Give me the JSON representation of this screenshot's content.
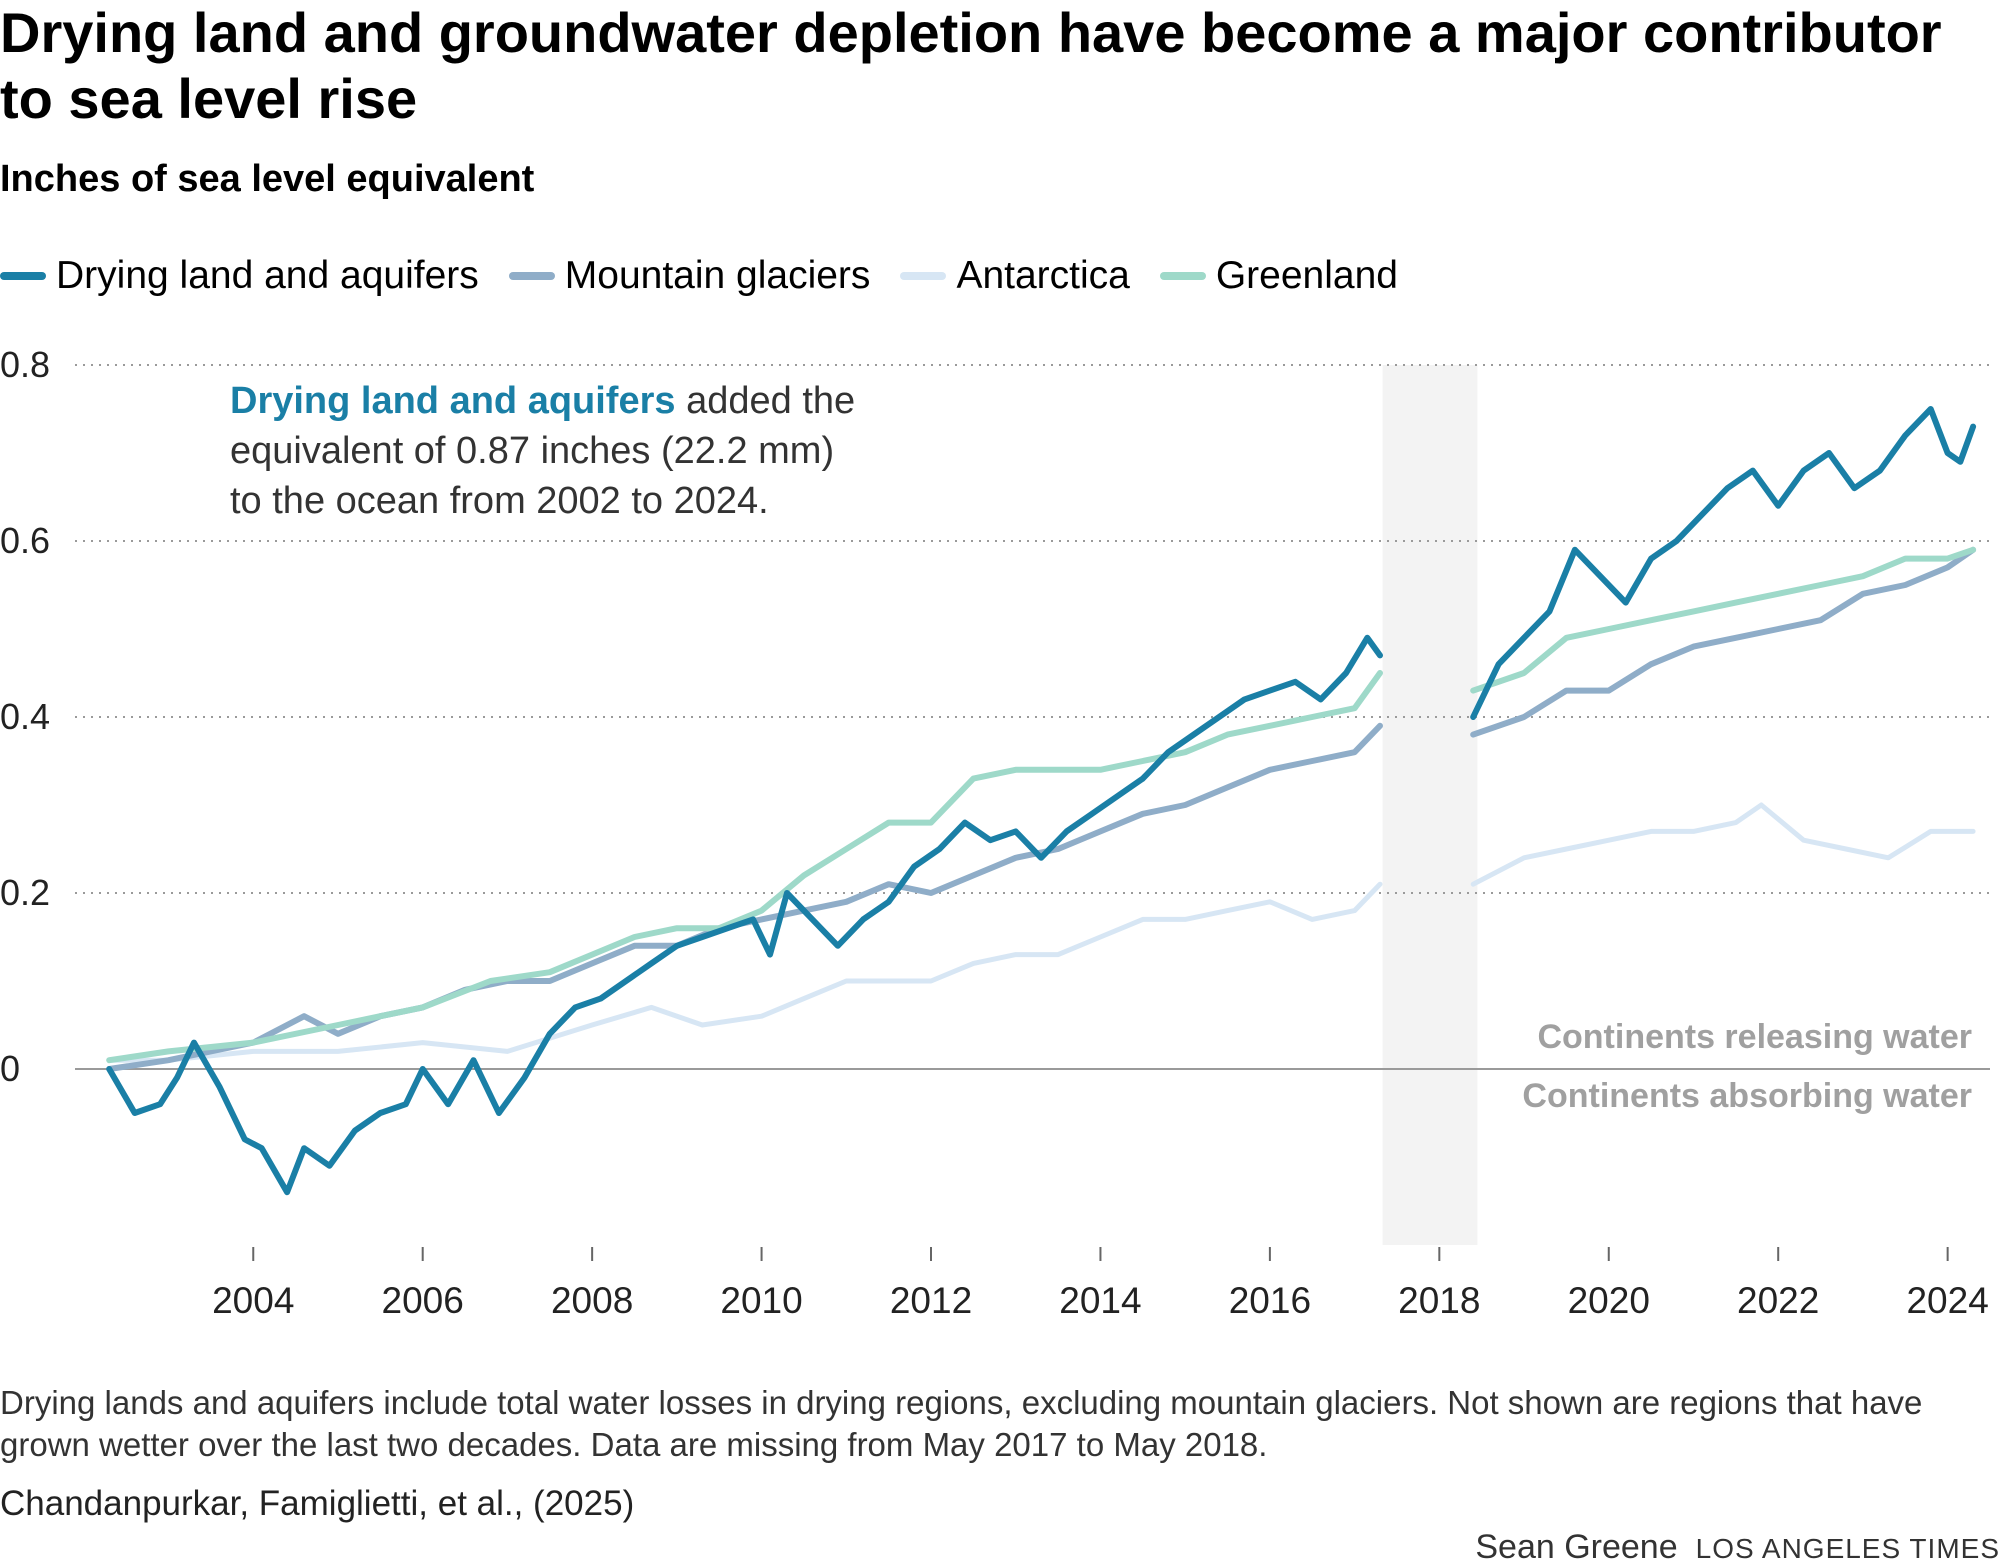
{
  "header": {
    "title": "Drying land and groundwater depletion have become a major contributor to sea level rise",
    "subtitle": "Inches of sea level equivalent"
  },
  "legend": [
    {
      "label": "Drying land and aquifers",
      "color": "#1a7fa6"
    },
    {
      "label": "Mountain glaciers",
      "color": "#8fadc8"
    },
    {
      "label": "Antarctica",
      "color": "#d7e6f4"
    },
    {
      "label": "Greenland",
      "color": "#9ed9c9"
    }
  ],
  "annotation": {
    "highlight": "Drying land and aquifers",
    "line1_rest": " added the",
    "line2": "equivalent of 0.87 inches (22.2 mm)",
    "line3": "to the ocean from 2002 to 2024."
  },
  "zero_labels": {
    "above": "Continents releasing water",
    "below": "Continents absorbing water"
  },
  "footnote": "Drying lands and aquifers include total water losses in drying regions, excluding mountain glaciers. Not shown are regions that have grown wetter over the last two decades. Data are missing from May 2017 to May 2018.",
  "source": "Chandanpurkar, Famiglietti, et al., (2025)",
  "credit": {
    "author": "Sean Greene",
    "publication": "LOS ANGELES TIMES"
  },
  "chart_data": {
    "type": "line",
    "title": "Drying land and groundwater depletion have become a major contributor to sea level rise",
    "ylabel": "Inches of sea level equivalent",
    "xlim": [
      2002.25,
      2024.5
    ],
    "ylim": [
      -0.2,
      0.8
    ],
    "yticks": [
      0,
      0.2,
      0.4,
      0.6,
      0.8
    ],
    "ytick_labels": [
      "0",
      "0.2",
      "0.4",
      "0.6",
      "0.8"
    ],
    "xticks": [
      2004,
      2006,
      2008,
      2010,
      2012,
      2014,
      2016,
      2018,
      2020,
      2022,
      2024
    ],
    "xtick_labels": [
      "2004",
      "2006",
      "2008",
      "2010",
      "2012",
      "2014",
      "2016",
      "2018",
      "2020",
      "2022",
      "2024"
    ],
    "gap": [
      2017.33,
      2018.45
    ],
    "series": [
      {
        "name": "Antarctica",
        "color": "#d7e6f4",
        "x": [
          2002.3,
          2003.0,
          2004.0,
          2005.0,
          2006.0,
          2007.0,
          2008.0,
          2008.7,
          2009.3,
          2010.0,
          2010.5,
          2011.0,
          2011.5,
          2012.0,
          2012.5,
          2013.0,
          2013.5,
          2014.0,
          2014.5,
          2015.0,
          2015.5,
          2016.0,
          2016.5,
          2017.0,
          2017.3,
          2018.4,
          2019.0,
          2019.5,
          2020.0,
          2020.5,
          2021.0,
          2021.5,
          2021.8,
          2022.3,
          2022.8,
          2023.3,
          2023.8,
          2024.3
        ],
        "values": [
          0.01,
          0.01,
          0.02,
          0.02,
          0.03,
          0.02,
          0.05,
          0.07,
          0.05,
          0.06,
          0.08,
          0.1,
          0.1,
          0.1,
          0.12,
          0.13,
          0.13,
          0.15,
          0.17,
          0.17,
          0.18,
          0.19,
          0.17,
          0.18,
          0.21,
          0.21,
          0.24,
          0.25,
          0.26,
          0.27,
          0.27,
          0.28,
          0.3,
          0.26,
          0.25,
          0.24,
          0.27,
          0.27
        ]
      },
      {
        "name": "Mountain glaciers",
        "color": "#8fadc8",
        "x": [
          2002.3,
          2003.0,
          2004.0,
          2004.6,
          2005.0,
          2005.5,
          2006.0,
          2006.5,
          2007.0,
          2007.5,
          2008.0,
          2008.5,
          2009.0,
          2009.5,
          2010.0,
          2010.5,
          2011.0,
          2011.5,
          2012.0,
          2012.5,
          2013.0,
          2013.5,
          2014.0,
          2014.5,
          2015.0,
          2015.5,
          2016.0,
          2016.5,
          2017.0,
          2017.3,
          2018.4,
          2019.0,
          2019.5,
          2020.0,
          2020.5,
          2021.0,
          2021.5,
          2022.0,
          2022.5,
          2023.0,
          2023.5,
          2024.0,
          2024.3
        ],
        "values": [
          0.0,
          0.01,
          0.03,
          0.06,
          0.04,
          0.06,
          0.07,
          0.09,
          0.1,
          0.1,
          0.12,
          0.14,
          0.14,
          0.16,
          0.17,
          0.18,
          0.19,
          0.21,
          0.2,
          0.22,
          0.24,
          0.25,
          0.27,
          0.29,
          0.3,
          0.32,
          0.34,
          0.35,
          0.36,
          0.39,
          0.38,
          0.4,
          0.43,
          0.43,
          0.46,
          0.48,
          0.49,
          0.5,
          0.51,
          0.54,
          0.55,
          0.57,
          0.59
        ]
      },
      {
        "name": "Greenland",
        "color": "#9ed9c9",
        "x": [
          2002.3,
          2003.0,
          2004.0,
          2005.0,
          2006.0,
          2006.8,
          2007.5,
          2008.0,
          2008.5,
          2009.0,
          2009.5,
          2010.0,
          2010.5,
          2011.0,
          2011.5,
          2012.0,
          2012.5,
          2013.0,
          2013.5,
          2014.0,
          2014.5,
          2015.0,
          2015.5,
          2016.0,
          2016.5,
          2017.0,
          2017.3,
          2018.4,
          2019.0,
          2019.5,
          2020.0,
          2020.5,
          2021.0,
          2021.5,
          2022.0,
          2022.5,
          2023.0,
          2023.5,
          2024.0,
          2024.3
        ],
        "values": [
          0.01,
          0.02,
          0.03,
          0.05,
          0.07,
          0.1,
          0.11,
          0.13,
          0.15,
          0.16,
          0.16,
          0.18,
          0.22,
          0.25,
          0.28,
          0.28,
          0.33,
          0.34,
          0.34,
          0.34,
          0.35,
          0.36,
          0.38,
          0.39,
          0.4,
          0.41,
          0.45,
          0.43,
          0.45,
          0.49,
          0.5,
          0.51,
          0.52,
          0.53,
          0.54,
          0.55,
          0.56,
          0.58,
          0.58,
          0.59
        ]
      },
      {
        "name": "Drying land and aquifers",
        "color": "#1a7fa6",
        "x": [
          2002.3,
          2002.6,
          2002.9,
          2003.1,
          2003.3,
          2003.6,
          2003.9,
          2004.1,
          2004.4,
          2004.6,
          2004.9,
          2005.2,
          2005.5,
          2005.8,
          2006.0,
          2006.3,
          2006.6,
          2006.9,
          2007.2,
          2007.5,
          2007.8,
          2008.1,
          2008.4,
          2008.7,
          2009.0,
          2009.3,
          2009.6,
          2009.9,
          2010.1,
          2010.3,
          2010.6,
          2010.9,
          2011.2,
          2011.5,
          2011.8,
          2012.1,
          2012.4,
          2012.7,
          2013.0,
          2013.3,
          2013.6,
          2013.9,
          2014.2,
          2014.5,
          2014.8,
          2015.1,
          2015.4,
          2015.7,
          2016.0,
          2016.3,
          2016.6,
          2016.9,
          2017.15,
          2017.3,
          2018.4,
          2018.7,
          2019.0,
          2019.3,
          2019.6,
          2019.9,
          2020.2,
          2020.5,
          2020.8,
          2021.1,
          2021.4,
          2021.7,
          2022.0,
          2022.3,
          2022.6,
          2022.9,
          2023.2,
          2023.5,
          2023.8,
          2024.0,
          2024.15,
          2024.3
        ],
        "values": [
          0.0,
          -0.05,
          -0.04,
          -0.01,
          0.03,
          -0.02,
          -0.08,
          -0.09,
          -0.14,
          -0.09,
          -0.11,
          -0.07,
          -0.05,
          -0.04,
          0.0,
          -0.04,
          0.01,
          -0.05,
          -0.01,
          0.04,
          0.07,
          0.08,
          0.1,
          0.12,
          0.14,
          0.15,
          0.16,
          0.17,
          0.13,
          0.2,
          0.17,
          0.14,
          0.17,
          0.19,
          0.23,
          0.25,
          0.28,
          0.26,
          0.27,
          0.24,
          0.27,
          0.29,
          0.31,
          0.33,
          0.36,
          0.38,
          0.4,
          0.42,
          0.43,
          0.44,
          0.42,
          0.45,
          0.49,
          0.47,
          0.4,
          0.46,
          0.49,
          0.52,
          0.59,
          0.56,
          0.53,
          0.58,
          0.6,
          0.63,
          0.66,
          0.68,
          0.64,
          0.68,
          0.7,
          0.66,
          0.68,
          0.72,
          0.75,
          0.7,
          0.69,
          0.73
        ]
      }
    ]
  }
}
